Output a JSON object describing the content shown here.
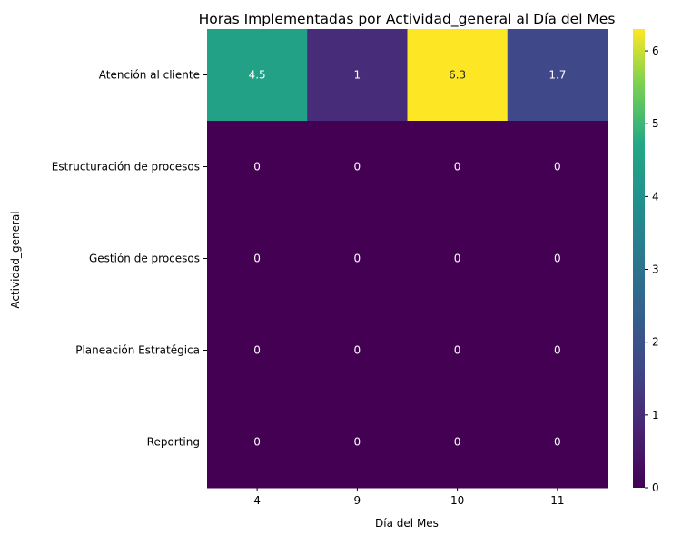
{
  "chart_data": {
    "type": "heatmap",
    "title": "Horas Implementadas por Actividad_general al Día del Mes",
    "xlabel": "Día del Mes",
    "ylabel": "Actividad_general",
    "x_categories": [
      "4",
      "9",
      "10",
      "11"
    ],
    "y_categories": [
      "Atención al cliente",
      "Estructuración de procesos",
      "Gestión de procesos",
      "Planeación Estratégica",
      "Reporting"
    ],
    "values": [
      [
        4.5,
        1,
        6.3,
        1.7
      ],
      [
        0,
        0,
        0,
        0
      ],
      [
        0,
        0,
        0,
        0
      ],
      [
        0,
        0,
        0,
        0
      ],
      [
        0,
        0,
        0,
        0
      ]
    ],
    "colorbar": {
      "min": 0,
      "max": 6.3,
      "ticks": [
        "0",
        "1",
        "2",
        "3",
        "4",
        "5",
        "6"
      ]
    },
    "colormap": "viridis",
    "annotation_colors": {
      "dark": "#262626",
      "light": "#ffffff"
    },
    "grid": false,
    "legend": "colorbar-right"
  }
}
